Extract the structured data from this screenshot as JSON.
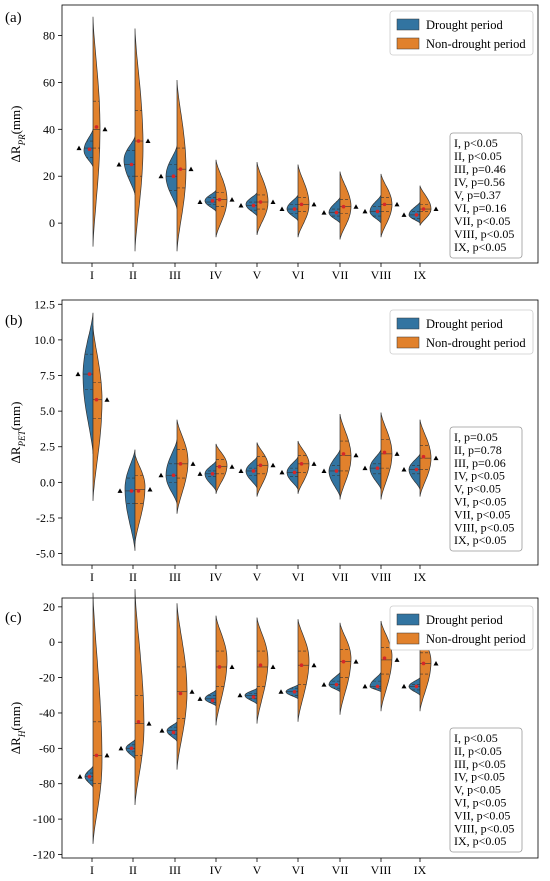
{
  "colors": {
    "drought": "#3274a1",
    "nondrought": "#e1812c",
    "mean_marker": "#d62728",
    "median_marker": "#000000"
  },
  "categories": [
    "I",
    "II",
    "III",
    "IV",
    "V",
    "VI",
    "VII",
    "VIII",
    "IX"
  ],
  "chart_data": [
    {
      "type": "violin",
      "panel": "(a)",
      "ylabel": {
        "main": "ΔR",
        "sub": "PR",
        "unit": "(mm)"
      },
      "yticks": [
        0,
        20,
        40,
        60,
        80
      ],
      "ylim": [
        -17,
        93
      ],
      "legend": [
        "Drought period",
        "Non-drought period"
      ],
      "legend_position": "top-right",
      "stats": [
        "I, p<0.05",
        "II, p<0.05",
        "III, p=0.46",
        "IV, p=0.56",
        "V, p=0.37",
        "VI, p=0.16",
        "VII, p<0.05",
        "VIII, p<0.05",
        "IX, p<0.05"
      ],
      "series": [
        {
          "name": "Drought period",
          "values": [
            {
              "lo": 24,
              "hi": 40,
              "q1": 28,
              "med": 32,
              "q3": 35,
              "mode": 31,
              "mean": 31.5,
              "w": 9
            },
            {
              "lo": 12,
              "hi": 37,
              "q1": 20,
              "med": 25,
              "q3": 31,
              "mode": 27,
              "mean": 25,
              "w": 11
            },
            {
              "lo": 6,
              "hi": 33,
              "q1": 14,
              "med": 20,
              "q3": 25,
              "mode": 20,
              "mean": 20,
              "w": 11
            },
            {
              "lo": 5,
              "hi": 14,
              "q1": 8,
              "med": 9,
              "q3": 11,
              "mode": 9.5,
              "mean": 9.5,
              "w": 11
            },
            {
              "lo": 3,
              "hi": 13,
              "q1": 5.5,
              "med": 7.5,
              "q3": 9,
              "mode": 8,
              "mean": 7.5,
              "w": 11
            },
            {
              "lo": 1,
              "hi": 12,
              "q1": 4,
              "med": 6,
              "q3": 8,
              "mode": 6,
              "mean": 6,
              "w": 11
            },
            {
              "lo": 0,
              "hi": 11,
              "q1": 3,
              "med": 4.5,
              "q3": 6,
              "mode": 4.5,
              "mean": 4.5,
              "w": 11
            },
            {
              "lo": 0,
              "hi": 12,
              "q1": 3,
              "med": 5,
              "q3": 7,
              "mode": 5,
              "mean": 5,
              "w": 11
            },
            {
              "lo": 0,
              "hi": 9,
              "q1": 2,
              "med": 3.5,
              "q3": 5,
              "mode": 3.5,
              "mean": 3.5,
              "w": 11
            }
          ]
        },
        {
          "name": "Non-drought period",
          "values": [
            {
              "lo": -10,
              "hi": 88,
              "q1": 32,
              "med": 40,
              "q3": 52,
              "mode": 40,
              "mean": 41,
              "w": 7
            },
            {
              "lo": -12,
              "hi": 83,
              "q1": 20,
              "med": 35,
              "q3": 48,
              "mode": 33,
              "mean": 35,
              "w": 8
            },
            {
              "lo": -12,
              "hi": 61,
              "q1": 15,
              "med": 23,
              "q3": 32,
              "mode": 23,
              "mean": 23,
              "w": 9
            },
            {
              "lo": -6,
              "hi": 27,
              "q1": 7,
              "med": 10,
              "q3": 13,
              "mode": 10,
              "mean": 10,
              "w": 11
            },
            {
              "lo": -5,
              "hi": 26,
              "q1": 6,
              "med": 9,
              "q3": 12,
              "mode": 9,
              "mean": 9,
              "w": 11
            },
            {
              "lo": -6,
              "hi": 25,
              "q1": 5,
              "med": 8,
              "q3": 11,
              "mode": 8,
              "mean": 8,
              "w": 11
            },
            {
              "lo": -7,
              "hi": 22,
              "q1": 4,
              "med": 7,
              "q3": 10,
              "mode": 7,
              "mean": 7,
              "w": 11
            },
            {
              "lo": -6,
              "hi": 21,
              "q1": 5,
              "med": 8,
              "q3": 11,
              "mode": 8,
              "mean": 8,
              "w": 11
            },
            {
              "lo": -1,
              "hi": 16,
              "q1": 5,
              "med": 6,
              "q3": 8,
              "mode": 6,
              "mean": 6,
              "w": 11
            }
          ]
        }
      ]
    },
    {
      "type": "violin",
      "panel": "(b)",
      "ylabel": {
        "main": "ΔR",
        "sub": "PET",
        "unit": "(mm)"
      },
      "yticks": [
        -5.0,
        -2.5,
        0.0,
        2.5,
        5.0,
        7.5,
        10.0,
        12.5
      ],
      "ylim": [
        -5.8,
        12.8
      ],
      "legend": [
        "Drought period",
        "Non-drought period"
      ],
      "legend_position": "top-right",
      "stats": [
        "I, p=0.05",
        "II, p=0.78",
        "III, p=0.06",
        "IV, p<0.05",
        "V, p<0.05",
        "VI, p<0.05",
        "VII, p<0.05",
        "VIII, p<0.05",
        "IX, p<0.05"
      ],
      "series": [
        {
          "name": "Drought period",
          "values": [
            {
              "lo": 2.0,
              "hi": 11.9,
              "q1": 6.5,
              "med": 7.6,
              "q3": 9.0,
              "mode": 7.5,
              "mean": 7.6,
              "w": 10
            },
            {
              "lo": -4.8,
              "hi": 2.3,
              "q1": -1.5,
              "med": -0.6,
              "q3": 0.3,
              "mode": -0.4,
              "mean": -0.6,
              "w": 10
            },
            {
              "lo": -1.5,
              "hi": 3.0,
              "q1": 0.0,
              "med": 0.5,
              "q3": 1.3,
              "mode": 0.5,
              "mean": 0.5,
              "w": 11
            },
            {
              "lo": -0.6,
              "hi": 1.5,
              "q1": 0.4,
              "med": 0.6,
              "q3": 0.8,
              "mode": 0.6,
              "mean": 0.6,
              "w": 11
            },
            {
              "lo": -0.4,
              "hi": 1.8,
              "q1": 0.5,
              "med": 0.8,
              "q3": 1.0,
              "mode": 0.8,
              "mean": 0.8,
              "w": 11
            },
            {
              "lo": -0.5,
              "hi": 1.8,
              "q1": 0.4,
              "med": 0.7,
              "q3": 1.0,
              "mode": 0.7,
              "mean": 0.7,
              "w": 11
            },
            {
              "lo": -1.0,
              "hi": 2.3,
              "q1": 0.5,
              "med": 0.8,
              "q3": 1.2,
              "mode": 0.8,
              "mean": 0.8,
              "w": 11
            },
            {
              "lo": -0.5,
              "hi": 2.3,
              "q1": 0.6,
              "med": 1.0,
              "q3": 1.3,
              "mode": 1.0,
              "mean": 1.0,
              "w": 11
            },
            {
              "lo": -0.5,
              "hi": 2.0,
              "q1": 0.6,
              "med": 0.9,
              "q3": 1.2,
              "mode": 0.9,
              "mean": 0.9,
              "w": 11
            }
          ]
        },
        {
          "name": "Non-drought period",
          "values": [
            {
              "lo": -1.3,
              "hi": 11.0,
              "q1": 4.5,
              "med": 5.8,
              "q3": 7.0,
              "mode": 5.8,
              "mean": 5.8,
              "w": 9
            },
            {
              "lo": -4.3,
              "hi": 2.0,
              "q1": -1.5,
              "med": -0.5,
              "q3": 0.5,
              "mode": -0.3,
              "mean": -0.6,
              "w": 10
            },
            {
              "lo": -2.2,
              "hi": 4.4,
              "q1": 0.3,
              "med": 1.3,
              "q3": 2.3,
              "mode": 1.5,
              "mean": 1.3,
              "w": 11
            },
            {
              "lo": -0.8,
              "hi": 2.7,
              "q1": 0.6,
              "med": 1.1,
              "q3": 1.6,
              "mode": 1.2,
              "mean": 1.1,
              "w": 11
            },
            {
              "lo": -1.0,
              "hi": 2.8,
              "q1": 0.6,
              "med": 1.2,
              "q3": 1.8,
              "mode": 1.2,
              "mean": 1.2,
              "w": 11
            },
            {
              "lo": -0.8,
              "hi": 2.9,
              "q1": 0.7,
              "med": 1.3,
              "q3": 1.9,
              "mode": 1.3,
              "mean": 1.3,
              "w": 11
            },
            {
              "lo": -1.2,
              "hi": 4.8,
              "q1": 0.8,
              "med": 1.9,
              "q3": 2.9,
              "mode": 1.8,
              "mean": 2.0,
              "w": 11
            },
            {
              "lo": -1.2,
              "hi": 4.9,
              "q1": 1.0,
              "med": 2.0,
              "q3": 3.0,
              "mode": 2.0,
              "mean": 2.1,
              "w": 11
            },
            {
              "lo": -1.0,
              "hi": 4.4,
              "q1": 0.9,
              "med": 1.7,
              "q3": 2.6,
              "mode": 1.7,
              "mean": 1.8,
              "w": 11
            }
          ]
        }
      ]
    },
    {
      "type": "violin",
      "panel": "(c)",
      "ylabel": {
        "main": "ΔR",
        "sub": "H",
        "unit": "(mm)"
      },
      "yticks": [
        -120,
        -100,
        -80,
        -60,
        -40,
        -20,
        0,
        20
      ],
      "ylim": [
        -122,
        25
      ],
      "legend": [
        "Drought period",
        "Non-drought period"
      ],
      "legend_position": "top-right",
      "stats": [
        "I, p<0.05",
        "II, p<0.05",
        "III, p<0.05",
        "IV, p<0.05",
        "V, p<0.05",
        "VI, p<0.05",
        "VII, p<0.05",
        "VIII, p<0.05",
        "IX, p<0.05"
      ],
      "series": [
        {
          "name": "Drought period",
          "values": [
            {
              "lo": -82,
              "hi": -70,
              "q1": -78,
              "med": -76,
              "q3": -74,
              "mode": -76,
              "mean": -76,
              "w": 8
            },
            {
              "lo": -66,
              "hi": -55,
              "q1": -62,
              "med": -60,
              "q3": -58,
              "mode": -60,
              "mean": -60,
              "w": 9
            },
            {
              "lo": -56,
              "hi": -45,
              "q1": -52,
              "med": -50,
              "q3": -48,
              "mode": -50,
              "mean": -51,
              "w": 10
            },
            {
              "lo": -36,
              "hi": -27,
              "q1": -34,
              "med": -32,
              "q3": -30,
              "mode": -32,
              "mean": -33,
              "w": 11
            },
            {
              "lo": -35,
              "hi": -26,
              "q1": -32,
              "med": -30,
              "q3": -29,
              "mode": -30,
              "mean": -31,
              "w": 12
            },
            {
              "lo": -32,
              "hi": -24,
              "q1": -30,
              "med": -28,
              "q3": -26,
              "mode": -28,
              "mean": -28,
              "w": 12
            },
            {
              "lo": -28,
              "hi": -17,
              "q1": -26,
              "med": -24,
              "q3": -22,
              "mode": -24,
              "mean": -24,
              "w": 11
            },
            {
              "lo": -28,
              "hi": -17,
              "q1": -26,
              "med": -25,
              "q3": -22,
              "mode": -25,
              "mean": -25,
              "w": 11
            },
            {
              "lo": -30,
              "hi": -20,
              "q1": -27,
              "med": -25,
              "q3": -24,
              "mode": -25,
              "mean": -25,
              "w": 11
            }
          ]
        },
        {
          "name": "Non-drought period",
          "values": [
            {
              "lo": -114,
              "hi": 28,
              "q1": -80,
              "med": -64,
              "q3": -45,
              "mode": -68,
              "mean": -64,
              "w": 9
            },
            {
              "lo": -92,
              "hi": 30,
              "q1": -64,
              "med": -46,
              "q3": -30,
              "mode": -48,
              "mean": -45,
              "w": 9
            },
            {
              "lo": -72,
              "hi": 22,
              "q1": -43,
              "med": -28,
              "q3": -14,
              "mode": -28,
              "mean": -29,
              "w": 10
            },
            {
              "lo": -47,
              "hi": 15,
              "q1": -25,
              "med": -14,
              "q3": -5,
              "mode": -10,
              "mean": -14,
              "w": 11
            },
            {
              "lo": -46,
              "hi": 14,
              "q1": -25,
              "med": -14,
              "q3": -5,
              "mode": -10,
              "mean": -13,
              "w": 11
            },
            {
              "lo": -45,
              "hi": 13,
              "q1": -24,
              "med": -13,
              "q3": -5,
              "mode": -10,
              "mean": -13,
              "w": 11
            },
            {
              "lo": -41,
              "hi": 11,
              "q1": -20,
              "med": -11,
              "q3": -4,
              "mode": -9,
              "mean": -11,
              "w": 11
            },
            {
              "lo": -39,
              "hi": 12,
              "q1": -18,
              "med": -10,
              "q3": -3,
              "mode": -8,
              "mean": -9,
              "w": 11
            },
            {
              "lo": -39,
              "hi": 8,
              "q1": -18,
              "med": -12,
              "q3": -6,
              "mode": -11,
              "mean": -12,
              "w": 11
            }
          ]
        }
      ]
    }
  ]
}
